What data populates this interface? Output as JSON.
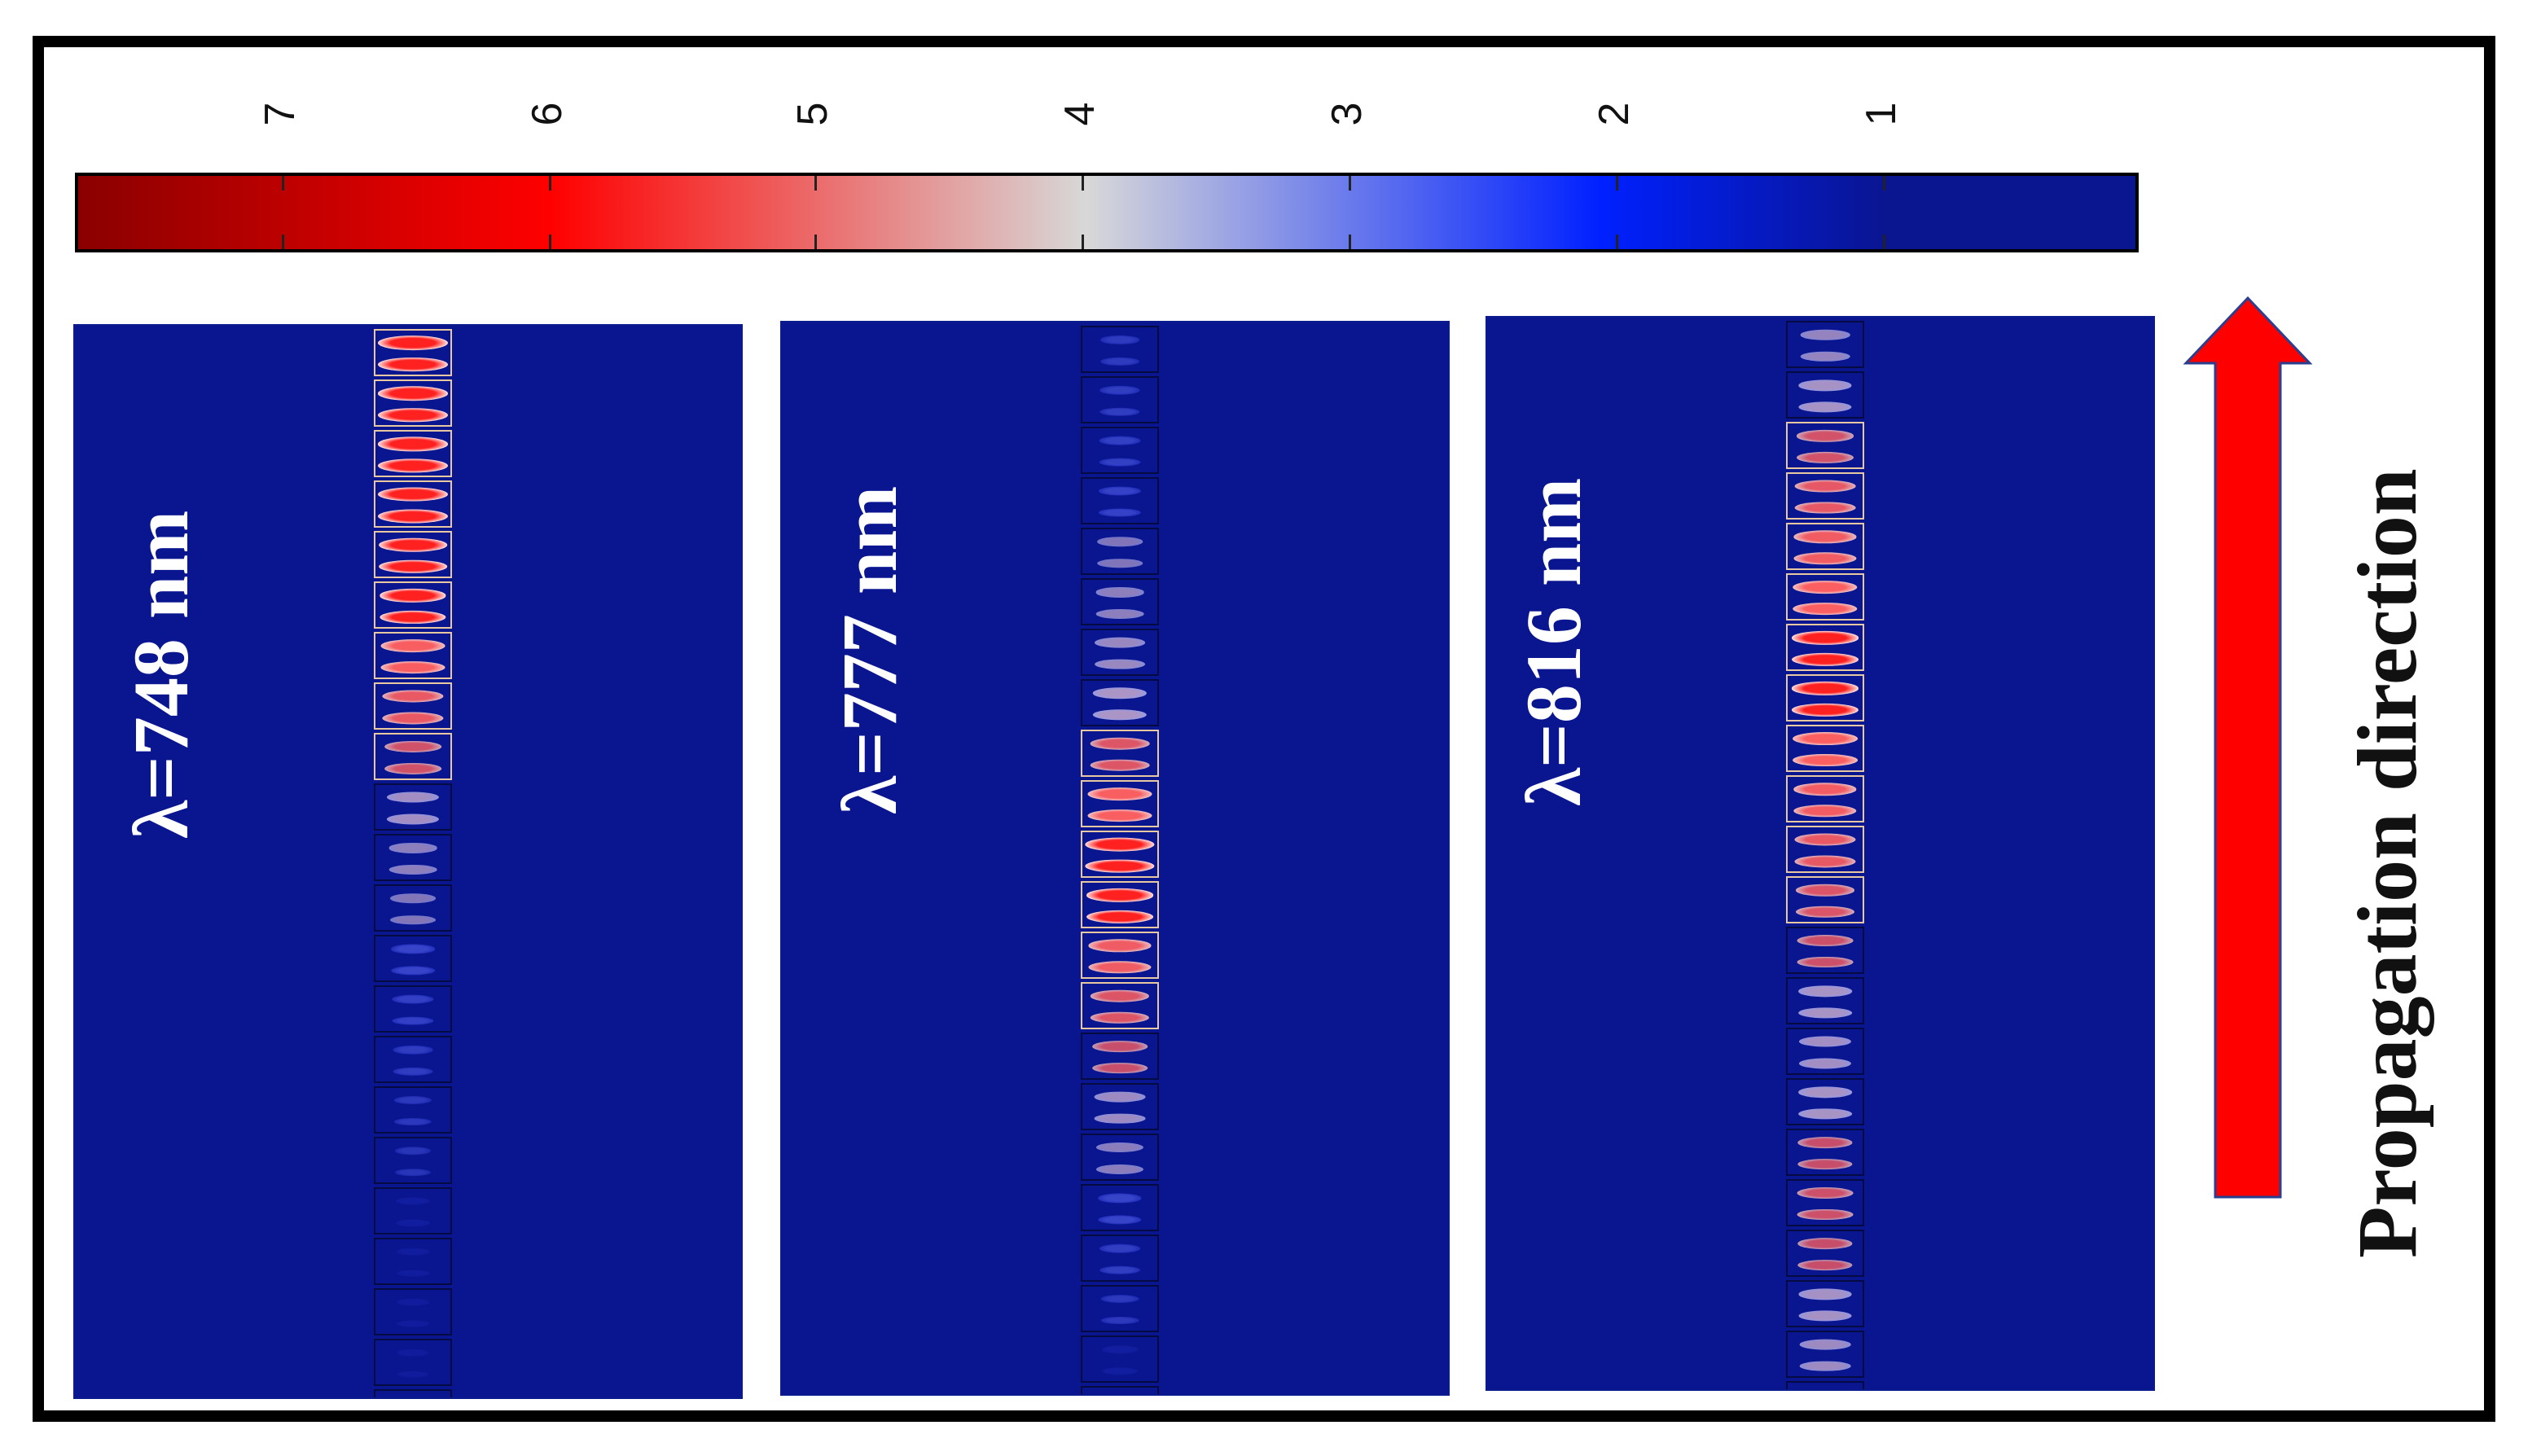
{
  "colorbar": {
    "tick_labels": [
      "7",
      "6",
      "5",
      "4",
      "3",
      "2",
      "1"
    ],
    "range": [
      0.3,
      7.8
    ],
    "colors": [
      "#8a0000",
      "#ff0000",
      "#d8d8d8",
      "#0020ff",
      "#0a1590"
    ]
  },
  "panels": [
    {
      "label": "λ=748 nm",
      "profile": [
        1,
        0.9,
        0.75,
        0.4,
        0.25,
        0.1,
        0.05
      ]
    },
    {
      "label": "λ=777 nm",
      "profile": [
        0.2,
        0.3,
        0.5,
        0.9,
        0.6,
        0.3,
        0.1
      ]
    },
    {
      "label": "λ=816 nm",
      "profile": [
        0.4,
        0.7,
        0.85,
        0.7,
        0.5,
        0.6,
        0.45
      ]
    }
  ],
  "direction_label": "Propagation direction",
  "arrow_color": "#ff0000"
}
